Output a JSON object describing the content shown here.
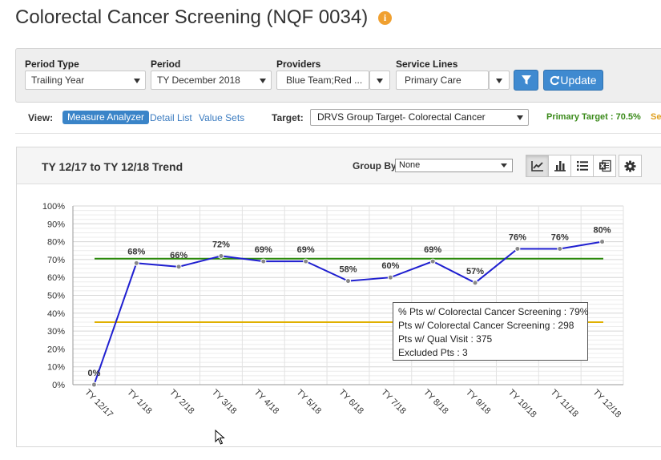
{
  "title": "Colorectal Cancer Screening (NQF 0034)",
  "info_glyph": "i",
  "filters": {
    "period_type": {
      "label": "Period Type",
      "value": "Trailing Year"
    },
    "period": {
      "label": "Period",
      "value": "TY December 2018"
    },
    "providers": {
      "label": "Providers",
      "value": "Blue Team;Red ..."
    },
    "service_lines": {
      "label": "Service Lines",
      "value": "Primary Care"
    },
    "update_label": "Update"
  },
  "view": {
    "label": "View:",
    "tabs": [
      "Measure Analyzer",
      "Detail List",
      "Value Sets"
    ],
    "active_tab": "Measure Analyzer",
    "target_label": "Target:",
    "target_value": "DRVS Group Target- Colorectal Cancer",
    "primary_target": "Primary Target : 70.5%",
    "secondary_clip": "Se"
  },
  "trend": {
    "title": "TY 12/17 to TY 12/18 Trend",
    "group_by_label": "Group By",
    "group_by_value": "None",
    "icons": [
      "line-chart-icon",
      "bar-chart-icon",
      "list-icon",
      "excel-icon",
      "gear-icon"
    ]
  },
  "tooltip": {
    "lines": [
      "% Pts w/ Colorectal Cancer Screening : 79%",
      "Pts w/ Colorectal Cancer Screening : 298",
      "Pts w/ Qual Visit : 375",
      "Excluded Pts : 3"
    ]
  },
  "colors": {
    "series_line": "#1f1fd0",
    "primary_target_line": "#2a8a0a",
    "secondary_target_line": "#e0b000",
    "accent_blue": "#3f8ad0"
  },
  "chart_data": {
    "type": "line",
    "categories": [
      "TY 12/17",
      "TY 1/18",
      "TY 2/18",
      "TY 3/18",
      "TY 4/18",
      "TY 5/18",
      "TY 6/18",
      "TY 7/18",
      "TY 8/18",
      "TY 9/18",
      "TY 10/18",
      "TY 11/18",
      "TY 12/18"
    ],
    "values": [
      0,
      68,
      66,
      72,
      69,
      69,
      58,
      60,
      69,
      57,
      76,
      76,
      80
    ],
    "data_labels": [
      "0%",
      "68%",
      "66%",
      "72%",
      "69%",
      "69%",
      "58%",
      "60%",
      "69%",
      "57%",
      "76%",
      "76%",
      "80%"
    ],
    "yticks": [
      "0%",
      "10%",
      "20%",
      "30%",
      "40%",
      "50%",
      "60%",
      "70%",
      "80%",
      "90%",
      "100%"
    ],
    "ylim": [
      0,
      100
    ],
    "target_lines": [
      70.5,
      35
    ],
    "grid": true
  }
}
